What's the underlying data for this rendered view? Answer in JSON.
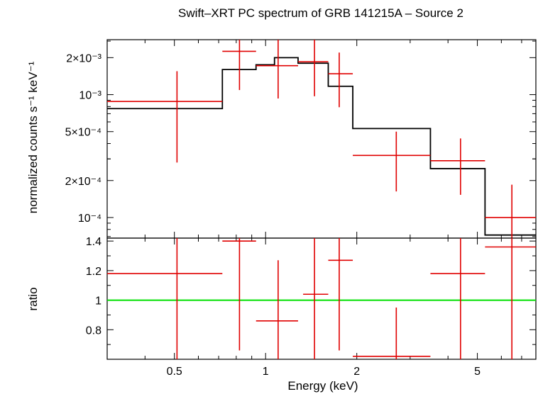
{
  "chart_data": [
    {
      "type": "line",
      "panel": "spectrum",
      "title": "Swift–XRT PC spectrum of GRB 141215A – Source 2",
      "ylabel": "normalized counts s⁻¹ keV⁻¹",
      "xlim": [
        0.3,
        7.8
      ],
      "ylim": [
        6.8e-05,
        0.0028
      ],
      "xscale": "log",
      "yscale": "log",
      "yticks": [
        {
          "value": 0.0001,
          "label": "10⁻⁴"
        },
        {
          "value": 0.0002,
          "label": "2×10⁻⁴"
        },
        {
          "value": 0.0005,
          "label": "5×10⁻⁴"
        },
        {
          "value": 0.001,
          "label": "10⁻³"
        },
        {
          "value": 0.002,
          "label": "2×10⁻³"
        }
      ],
      "series": [
        {
          "style": "errorbar",
          "color": "#e00000",
          "points": [
            {
              "x": 0.51,
              "xlo": 0.3,
              "xhi": 0.72,
              "y": 0.00088,
              "ylo": 0.00028,
              "yhi": 0.00155
            },
            {
              "x": 0.82,
              "xlo": 0.72,
              "xhi": 0.93,
              "y": 0.00225,
              "ylo": 0.00109,
              "yhi": 0.0029
            },
            {
              "x": 1.1,
              "xlo": 0.93,
              "xhi": 1.28,
              "y": 0.00172,
              "ylo": 0.00093,
              "yhi": 0.0029
            },
            {
              "x": 1.45,
              "xlo": 1.28,
              "xhi": 1.61,
              "y": 0.00185,
              "ylo": 0.00097,
              "yhi": 0.0029
            },
            {
              "x": 1.75,
              "xlo": 1.61,
              "xhi": 1.94,
              "y": 0.00148,
              "ylo": 0.00079,
              "yhi": 0.0022
            },
            {
              "x": 2.7,
              "xlo": 1.94,
              "xhi": 3.5,
              "y": 0.00032,
              "ylo": 0.000163,
              "yhi": 0.0005
            },
            {
              "x": 4.4,
              "xlo": 3.5,
              "xhi": 5.3,
              "y": 0.00029,
              "ylo": 0.000153,
              "yhi": 0.00044
            },
            {
              "x": 6.5,
              "xlo": 5.3,
              "xhi": 7.8,
              "y": 0.0001,
              "ylo": 6.8e-05,
              "yhi": 0.000185
            }
          ]
        },
        {
          "style": "step",
          "color": "#000000",
          "edges": [
            0.3,
            0.72,
            0.93,
            1.07,
            1.28,
            1.61,
            1.94,
            3.5,
            5.3,
            7.8
          ],
          "values": [
            0.00077,
            0.0016,
            0.00175,
            0.002,
            0.0018,
            0.00117,
            0.00053,
            0.00025,
            7.2e-05
          ]
        }
      ]
    },
    {
      "type": "line",
      "panel": "ratio",
      "xlabel": "Energy (keV)",
      "ylabel": "ratio",
      "xlim": [
        0.3,
        7.8
      ],
      "ylim": [
        0.6,
        1.42
      ],
      "xscale": "log",
      "xticks": [
        {
          "value": 0.5,
          "label": "0.5"
        },
        {
          "value": 1,
          "label": "1"
        },
        {
          "value": 2,
          "label": "2"
        },
        {
          "value": 5,
          "label": "5"
        }
      ],
      "yticks": [
        {
          "value": 0.8,
          "label": "0.8"
        },
        {
          "value": 1.0,
          "label": "1"
        },
        {
          "value": 1.2,
          "label": "1.2"
        },
        {
          "value": 1.4,
          "label": "1.4"
        }
      ],
      "reference_line": {
        "y": 1.0,
        "color": "#00e000"
      },
      "series": [
        {
          "style": "errorbar",
          "color": "#e00000",
          "points": [
            {
              "x": 0.51,
              "xlo": 0.3,
              "xhi": 0.72,
              "y": 1.18,
              "ylo": 0.6,
              "yhi": 1.42
            },
            {
              "x": 0.82,
              "xlo": 0.72,
              "xhi": 0.93,
              "y": 1.4,
              "ylo": 0.66,
              "yhi": 1.42
            },
            {
              "x": 1.1,
              "xlo": 0.93,
              "xhi": 1.28,
              "y": 0.86,
              "ylo": 0.6,
              "yhi": 1.27
            },
            {
              "x": 1.45,
              "xlo": 1.33,
              "xhi": 1.61,
              "y": 1.04,
              "ylo": 0.6,
              "yhi": 1.42
            },
            {
              "x": 1.75,
              "xlo": 1.61,
              "xhi": 1.94,
              "y": 1.27,
              "ylo": 0.66,
              "yhi": 1.42
            },
            {
              "x": 2.7,
              "xlo": 1.94,
              "xhi": 3.5,
              "y": 0.62,
              "ylo": 0.6,
              "yhi": 0.95
            },
            {
              "x": 4.4,
              "xlo": 3.5,
              "xhi": 5.3,
              "y": 1.18,
              "ylo": 0.6,
              "yhi": 1.42
            },
            {
              "x": 6.5,
              "xlo": 5.3,
              "xhi": 7.8,
              "y": 1.36,
              "ylo": 0.6,
              "yhi": 1.42
            }
          ]
        }
      ]
    }
  ]
}
